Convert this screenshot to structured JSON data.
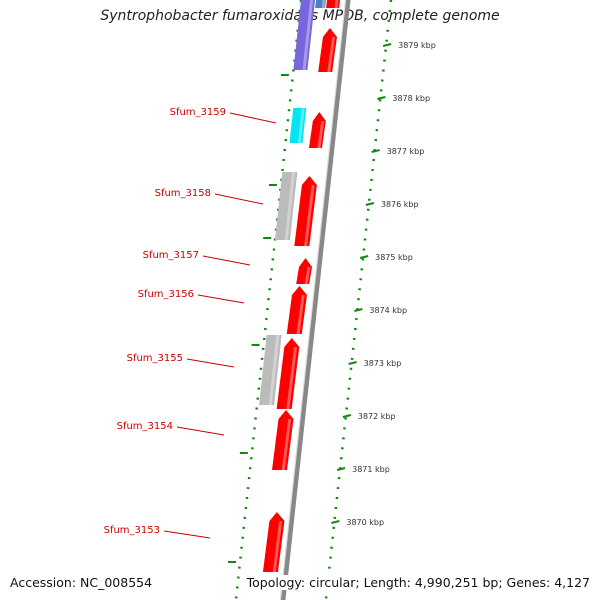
{
  "title": "Syntrophobacter fumaroxidans MPOB, complete genome",
  "accession_text": "Accession: NC_008554",
  "topology_text": "Topology: circular; Length: 4,990,251 bp; Genes: 4,127",
  "colors": {
    "forward_gene": "#ff0000",
    "reverse_gene_gray": "#bbbbbb",
    "reverse_gene_cyan": "#00e5f0",
    "reverse_gene_purple": "#7766dd",
    "gene_label": "#cc0000",
    "ticks": "#118811",
    "backbone": "#888888"
  },
  "kbp_ticks": [
    "3879 kbp",
    "3878 kbp",
    "3877 kbp",
    "3876 kbp",
    "3875 kbp",
    "3874 kbp",
    "3873 kbp",
    "3872 kbp",
    "3871 kbp",
    "3870 kbp"
  ],
  "gene_labels": [
    "Sfum_3159",
    "Sfum_3158",
    "Sfum_3157",
    "Sfum_3156",
    "Sfum_3155",
    "Sfum_3154",
    "Sfum_3153"
  ]
}
